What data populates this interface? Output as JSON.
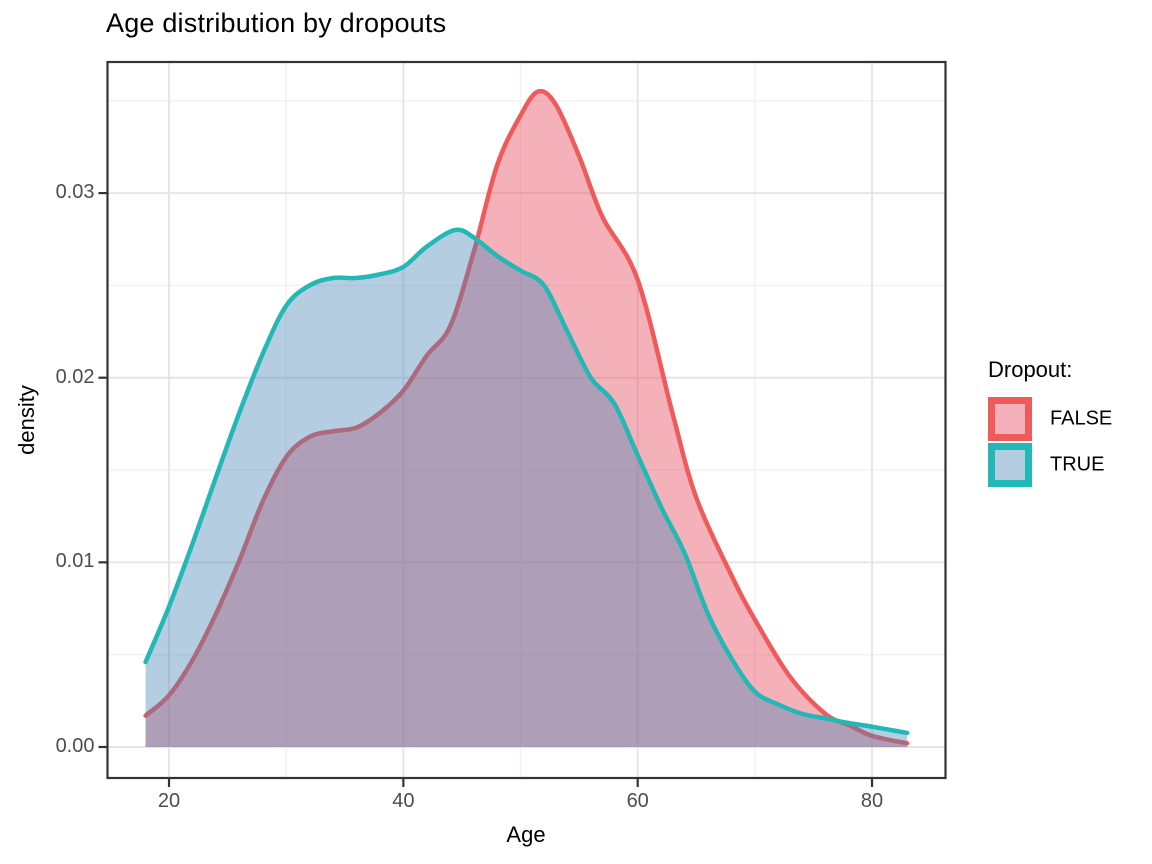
{
  "title": "Age distribution by dropouts",
  "x_axis": {
    "label": "Age",
    "tick_labels": [
      "20",
      "40",
      "60",
      "80"
    ],
    "tick_values": [
      20,
      40,
      60,
      80
    ]
  },
  "y_axis": {
    "label": "density",
    "tick_labels": [
      "0.00",
      "0.01",
      "0.02",
      "0.03"
    ],
    "tick_values": [
      0,
      0.01,
      0.02,
      0.03
    ]
  },
  "legend": {
    "title": "Dropout:",
    "entries": [
      {
        "label": "FALSE",
        "stroke": "#ef5a5a",
        "fill": "rgba(231,81,100,0.45)"
      },
      {
        "label": "TRUE",
        "stroke": "#22b8b5",
        "fill": "rgba(70,130,180,0.40)"
      }
    ]
  },
  "colors": {
    "false_stroke": "#ef5a5a",
    "false_fill": "rgba(231,81,100,0.45)",
    "true_stroke": "#22b8b5",
    "true_fill": "rgba(70,130,180,0.40)",
    "grid_major": "#e6e6e6",
    "grid_minor": "#f1f1f1",
    "panel_border": "#333333",
    "tick_mark": "#333333",
    "tick_label": "#4d4d4d",
    "panel_bg": "#ffffff"
  },
  "chart_data": {
    "type": "area",
    "title": "Age distribution by dropouts",
    "xlabel": "Age",
    "ylabel": "density",
    "xlim": [
      14.75,
      86.27
    ],
    "ylim": [
      -0.00168,
      0.0371
    ],
    "x_major_breaks": [
      20,
      40,
      60,
      80
    ],
    "x_minor_breaks": [
      30,
      50,
      70
    ],
    "y_major_breaks": [
      0,
      0.01,
      0.02,
      0.03
    ],
    "y_minor_breaks": [
      0.005,
      0.015,
      0.025,
      0.035
    ],
    "grid": true,
    "legend_position": "right",
    "series": [
      {
        "name": "FALSE",
        "x": [
          18,
          20,
          22,
          24,
          26,
          28,
          30,
          32,
          34,
          36,
          38,
          40,
          42,
          44,
          46,
          48,
          50,
          51.5,
          53,
          55,
          57,
          60,
          63,
          65,
          68,
          70,
          73,
          76,
          78,
          80,
          83
        ],
        "y": [
          0.0017,
          0.0028,
          0.0047,
          0.0072,
          0.0101,
          0.0133,
          0.0157,
          0.0168,
          0.0171,
          0.0173,
          0.0181,
          0.0193,
          0.0212,
          0.0228,
          0.0268,
          0.0315,
          0.0342,
          0.0355,
          0.0348,
          0.032,
          0.0287,
          0.0253,
          0.018,
          0.0135,
          0.0093,
          0.0069,
          0.0038,
          0.0018,
          0.0012,
          0.0006,
          0.0002
        ]
      },
      {
        "name": "TRUE",
        "x": [
          18,
          20,
          22,
          24,
          26,
          28,
          30,
          32,
          34,
          36,
          38,
          40,
          42,
          44.4,
          46,
          48,
          50,
          52,
          54,
          56,
          58,
          60,
          62,
          64,
          66,
          68,
          70,
          72,
          74,
          76,
          78,
          80,
          83
        ],
        "y": [
          0.0046,
          0.0076,
          0.011,
          0.0146,
          0.0181,
          0.0213,
          0.0239,
          0.025,
          0.0254,
          0.0254,
          0.0256,
          0.026,
          0.0271,
          0.028,
          0.0276,
          0.0266,
          0.0258,
          0.025,
          0.0225,
          0.02,
          0.0186,
          0.0158,
          0.013,
          0.0105,
          0.0072,
          0.0048,
          0.003,
          0.0023,
          0.0018,
          0.00155,
          0.0013,
          0.0011,
          0.00076
        ]
      }
    ]
  }
}
